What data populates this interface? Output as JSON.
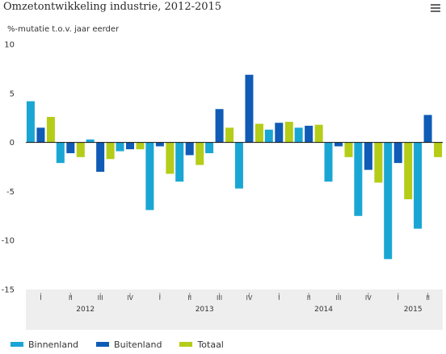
{
  "title": "Omzetontwikkeling industrie, 2012-2015",
  "subtitle": "%-mutatie t.o.v. jaar eerder",
  "menu_icon": "hamburger-menu-icon",
  "colors": {
    "binnenland": "#1aa6d4",
    "buitenland": "#0f5bb5",
    "totaal": "#b5cc18",
    "zero_line": "#111111",
    "axis_band": "#eeeeee"
  },
  "chart_data": {
    "type": "bar",
    "title": "Omzetontwikkeling industrie, 2012-2015",
    "ylabel": "%-mutatie t.o.v. jaar eerder",
    "ylim": [
      -15,
      10
    ],
    "yticks": [
      10,
      5,
      0,
      -5,
      -10,
      -15
    ],
    "grid": false,
    "legend_position": "bottom-left",
    "categories": [
      "I",
      "II",
      "III",
      "IV",
      "I",
      "II",
      "III",
      "IV",
      "I",
      "II",
      "III",
      "IV",
      "I",
      "II"
    ],
    "years": [
      {
        "label": "2012",
        "start": 0,
        "count": 4
      },
      {
        "label": "2013",
        "start": 4,
        "count": 4
      },
      {
        "label": "2014",
        "start": 8,
        "count": 4
      },
      {
        "label": "2015",
        "start": 12,
        "count": 2
      }
    ],
    "series": [
      {
        "name": "Binnenland",
        "color": "#1aa6d4",
        "values": [
          4.2,
          -2.1,
          0.3,
          -0.9,
          -6.9,
          -4.0,
          -1.1,
          -4.7,
          1.3,
          1.5,
          -4.0,
          -7.5,
          -11.9,
          -8.8
        ]
      },
      {
        "name": "Buitenland",
        "color": "#0f5bb5",
        "values": [
          1.5,
          -1.1,
          -3.0,
          -0.7,
          -0.4,
          -1.3,
          3.4,
          6.9,
          2.0,
          1.7,
          -0.4,
          -2.8,
          -2.1,
          2.8
        ]
      },
      {
        "name": "Totaal",
        "color": "#b5cc18",
        "values": [
          2.6,
          -1.5,
          -1.7,
          -0.7,
          -3.2,
          -2.3,
          1.5,
          1.9,
          2.1,
          1.8,
          -1.5,
          -4.1,
          -5.8,
          -1.5
        ]
      }
    ]
  }
}
